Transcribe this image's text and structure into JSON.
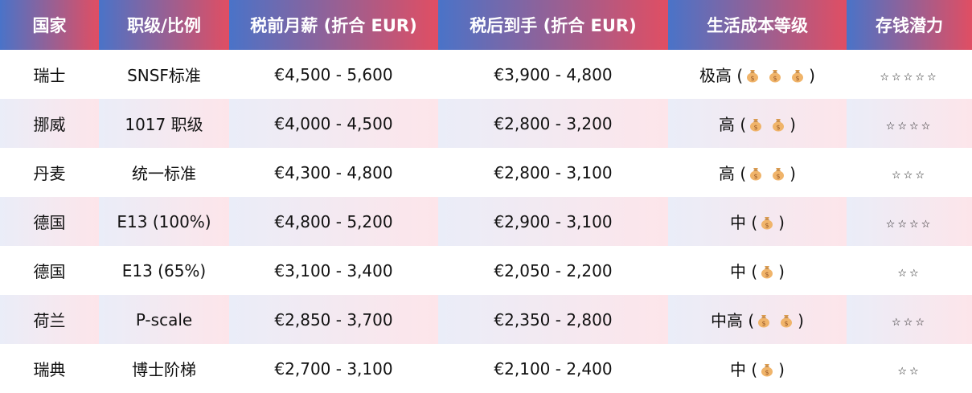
{
  "headers": [
    "国家",
    "职级/比例",
    "税前月薪 (折合 EUR)",
    "税后到手 (折合 EUR)",
    "生活成本等级",
    "存钱潜力"
  ],
  "rows": [
    {
      "country": "瑞士",
      "grade": "SNSF标准",
      "gross": "€4,500 - 5,600",
      "net": "€3,900 - 4,800",
      "cost_label": "极高",
      "cost_bags": 3,
      "stars": "☆☆☆☆☆",
      "star_count": 5
    },
    {
      "country": "挪威",
      "grade": "1017 职级",
      "gross": "€4,000 - 4,500",
      "net": "€2,800 - 3,200",
      "cost_label": "高",
      "cost_bags": 2,
      "stars": "☆☆☆☆",
      "star_count": 4
    },
    {
      "country": "丹麦",
      "grade": "统一标准",
      "gross": "€4,300 - 4,800",
      "net": "€2,800 - 3,100",
      "cost_label": "高",
      "cost_bags": 2,
      "stars": "☆☆☆",
      "star_count": 3
    },
    {
      "country": "德国",
      "grade": "E13 (100%)",
      "gross": "€4,800 - 5,200",
      "net": "€2,900 - 3,100",
      "cost_label": "中",
      "cost_bags": 1,
      "stars": "☆☆☆☆",
      "star_count": 4
    },
    {
      "country": "德国",
      "grade": "E13 (65%)",
      "gross": "€3,100 - 3,400",
      "net": "€2,050 - 2,200",
      "cost_label": "中",
      "cost_bags": 1,
      "stars": "☆☆",
      "star_count": 2
    },
    {
      "country": "荷兰",
      "grade": "P-scale",
      "gross": "€2,850 - 3,700",
      "net": "€2,350 - 2,800",
      "cost_label": "中高",
      "cost_bags": 2,
      "stars": "☆☆☆",
      "star_count": 3
    },
    {
      "country": "瑞典",
      "grade": "博士阶梯",
      "gross": "€2,700 - 3,100",
      "net": "€2,100 - 2,400",
      "cost_label": "中",
      "cost_bags": 1,
      "stars": "☆☆",
      "star_count": 2
    }
  ],
  "icons": {
    "cost": "money-bag-icon",
    "savings": "star-icon"
  },
  "colors": {
    "header_start": "#4a73c8",
    "header_end": "#e04e63",
    "alt_row_start": "#eaedf8",
    "alt_row_end": "#fde5ea",
    "bag": "#f0b46a"
  }
}
